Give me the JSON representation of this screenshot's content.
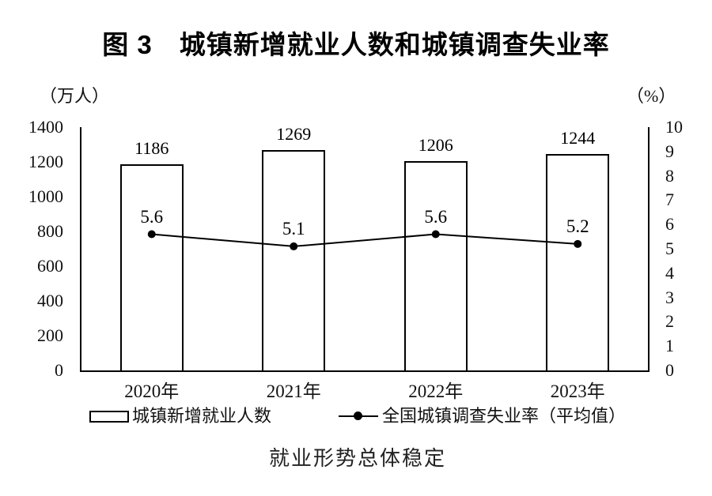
{
  "figure": {
    "title": "图 3　城镇新增就业人数和城镇调查失业率",
    "caption": "就业形势总体稳定"
  },
  "chart_data": {
    "type": "bar",
    "title": "图 3　城镇新增就业人数和城镇调查失业率",
    "caption": "就业形势总体稳定",
    "categories": [
      "2020年",
      "2021年",
      "2022年",
      "2023年"
    ],
    "series": [
      {
        "name": "城镇新增就业人数",
        "type": "bar",
        "axis": "left",
        "values": [
          1186,
          1269,
          1206,
          1244
        ]
      },
      {
        "name": "全国城镇调查失业率（平均值）",
        "type": "line",
        "axis": "right",
        "values": [
          5.6,
          5.1,
          5.6,
          5.2
        ]
      }
    ],
    "left_axis": {
      "label": "（万人）",
      "min": 0,
      "max": 1400,
      "step": 200,
      "tick_labels": [
        "1400",
        "1200",
        "1000",
        "800",
        "600",
        "400",
        "200",
        "0"
      ]
    },
    "right_axis": {
      "label": "（%）",
      "min": 0,
      "max": 10,
      "step": 1,
      "tick_labels": [
        "10",
        "9",
        "8",
        "7",
        "6",
        "5",
        "4",
        "3",
        "2",
        "1",
        "0"
      ]
    },
    "grid": false,
    "legend_position": "bottom",
    "colors": {
      "background": "#ffffff",
      "bar_fill": "#ffffff",
      "bar_border": "#000000",
      "line": "#000000",
      "text": "#000000"
    }
  }
}
